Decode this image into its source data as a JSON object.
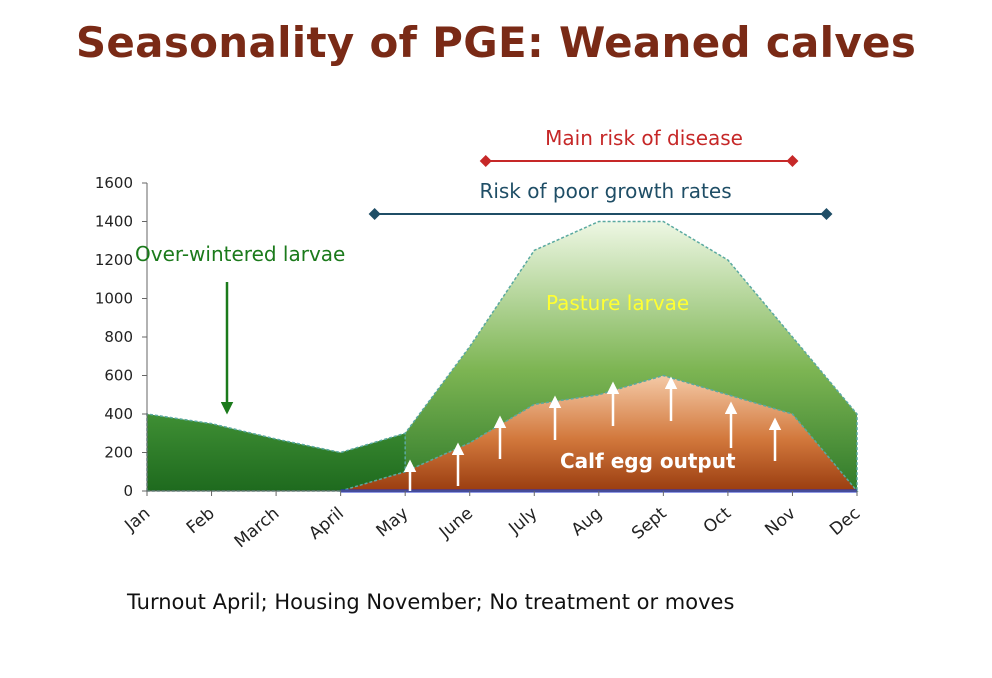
{
  "slide": {
    "title": "Seasonality of PGE: Weaned calves",
    "footnote": "Turnout April; Housing November; No treatment or moves"
  },
  "chart_data": {
    "type": "area",
    "categories": [
      "Jan",
      "Feb",
      "March",
      "April",
      "May",
      "June",
      "July",
      "Aug",
      "Sept",
      "Oct",
      "Nov",
      "Dec"
    ],
    "ylim": [
      0,
      1600
    ],
    "yticks": [
      0,
      200,
      400,
      600,
      800,
      1000,
      1200,
      1400,
      1600
    ],
    "grid": false,
    "series": [
      {
        "label": "Over-wintered larvae",
        "values": [
          400,
          350,
          270,
          200,
          300,
          null,
          null,
          null,
          null,
          null,
          null,
          null
        ],
        "color": "#2e7d32"
      },
      {
        "label": "Pasture larvae",
        "values": [
          null,
          null,
          null,
          0,
          300,
          750,
          1250,
          1400,
          1400,
          1200,
          800,
          400
        ],
        "color": "#8fbf5f"
      },
      {
        "label": "Calf egg output",
        "values": [
          null,
          null,
          null,
          0,
          100,
          250,
          450,
          500,
          600,
          500,
          400,
          0
        ],
        "color": "#c86428"
      }
    ],
    "annotations": {
      "main_risk": {
        "text": "Main risk of disease",
        "from": "June",
        "to": "Nov",
        "color": "#c62828"
      },
      "poor_growth": {
        "text": "Risk of poor growth rates",
        "from": "April",
        "to": "Nov",
        "color": "#1f4e66"
      },
      "overwintered_label_color": "#1b7a1b",
      "pasture_label_color": "#ffff33",
      "egg_label_color": "#ffffff"
    }
  }
}
